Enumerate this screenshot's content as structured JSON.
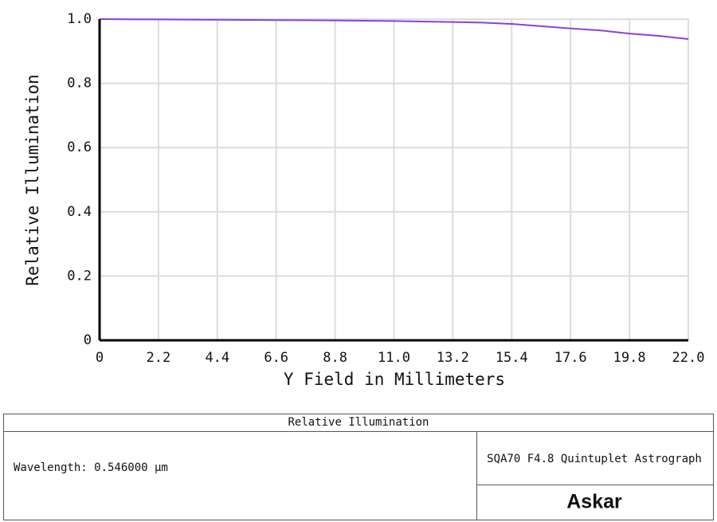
{
  "chart_data": {
    "type": "line",
    "x_label": "Y Field in Millimeters",
    "y_label": "Relative Illumination",
    "x": [
      0,
      1.1,
      2.2,
      3.3,
      4.4,
      5.5,
      6.6,
      7.7,
      8.8,
      9.9,
      11,
      12.1,
      13.2,
      14.3,
      15.4,
      16.5,
      17.6,
      18.7,
      19.8,
      20.9,
      22
    ],
    "series": [
      {
        "color": "#8b3fd9",
        "values": [
          1.0,
          0.9995,
          0.999,
          0.9985,
          0.998,
          0.9975,
          0.997,
          0.9965,
          0.996,
          0.995,
          0.994,
          0.9925,
          0.991,
          0.989,
          0.985,
          0.978,
          0.971,
          0.965,
          0.955,
          0.948,
          0.938
        ]
      }
    ],
    "xlim": [
      0,
      22
    ],
    "ylim": [
      0,
      1
    ],
    "xticks": [
      0,
      2.2,
      4.4,
      6.6,
      8.8,
      {
        "value": 11,
        "label": "11.0"
      },
      13.2,
      15.4,
      17.6,
      19.8,
      {
        "value": 22,
        "label": "22.0"
      }
    ],
    "yticks": [
      0,
      0.2,
      0.4,
      0.6,
      0.8,
      {
        "value": 1,
        "label": "1.0"
      }
    ],
    "grid": true
  },
  "footer": {
    "title": "Relative Illumination",
    "wavelength": "Wavelength: 0.546000 µm",
    "system": "SQA70 F4.8 Quintuplet Astrograph",
    "brand": "Askar"
  }
}
